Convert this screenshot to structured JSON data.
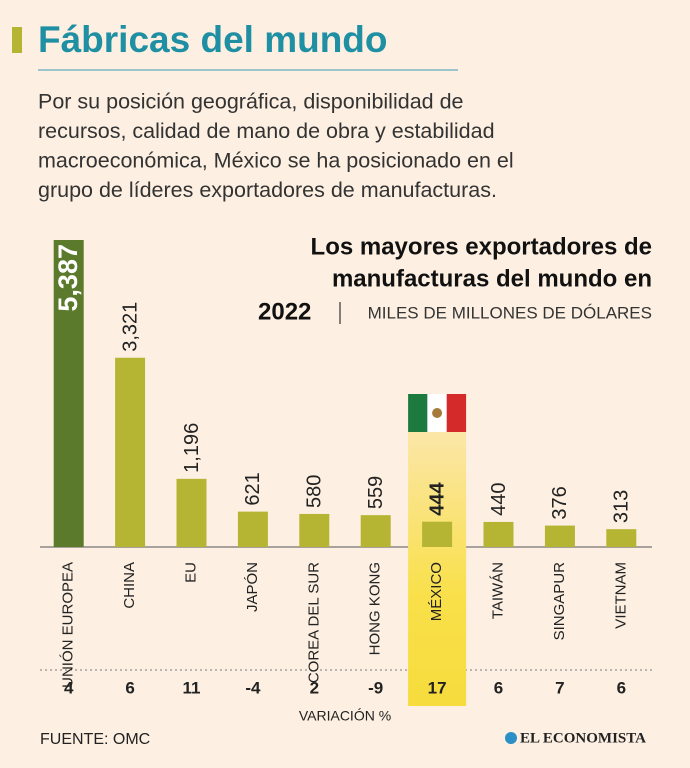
{
  "chart_data": {
    "type": "bar",
    "header": "Fábricas del mundo",
    "subtitle": [
      "Por su posición geográfica, disponibilidad de",
      "recursos, calidad de mano de obra y estabilidad",
      "macroeconómica, México se ha posicionado en el",
      "grupo de líderes exportadores de manufacturas."
    ],
    "title": [
      "Los mayores exportadores de",
      "manufacturas del mundo en",
      "2022"
    ],
    "units": "MILES DE MILLONES DE DÓLARES",
    "categories": [
      "UNIÓN EUROPEA",
      "CHINA",
      "EU",
      "JAPÓN",
      "COREA DEL SUR",
      "HONG KONG",
      "MÉXICO",
      "TAIWÁN",
      "SINGAPUR",
      "VIETNAM"
    ],
    "values": [
      5387,
      3321,
      1196,
      621,
      580,
      559,
      444,
      440,
      376,
      313
    ],
    "value_labels": [
      "5,387",
      "3,321",
      "1,196",
      "621",
      "580",
      "559",
      "444",
      "440",
      "376",
      "313"
    ],
    "colors": [
      "#5b7a2c",
      "#b6b533",
      "#b6b533",
      "#b6b533",
      "#b6b533",
      "#b6b533",
      "#b6b533",
      "#b6b533",
      "#b6b533",
      "#b6b533"
    ],
    "highlight": "MÉXICO",
    "variation": [
      4,
      6,
      11,
      -4,
      2,
      -9,
      17,
      6,
      7,
      6
    ],
    "variation_label": "VARIACIÓN %",
    "source": "FUENTE:  OMC",
    "brand": "EL ECONOMISTA"
  }
}
